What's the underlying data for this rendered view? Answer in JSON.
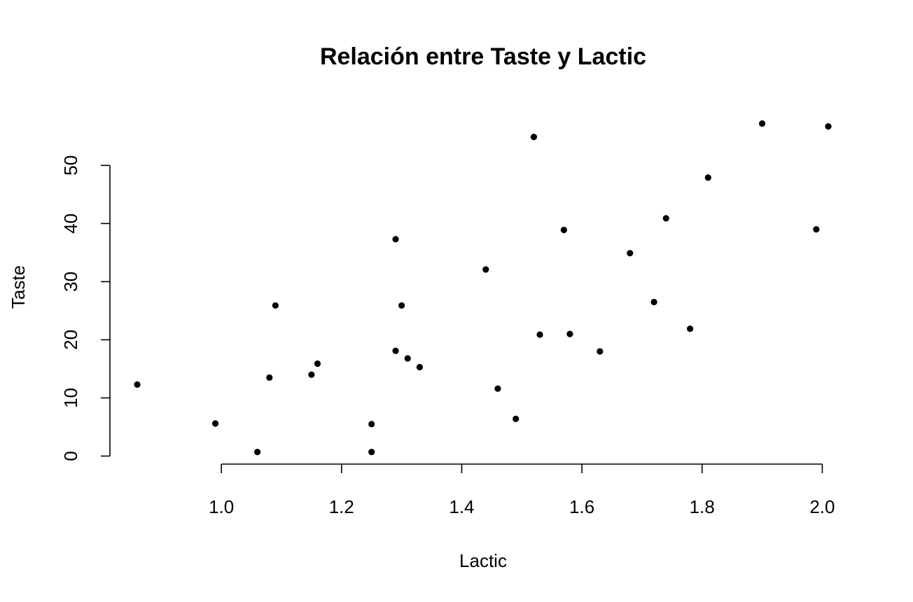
{
  "chart_data": {
    "type": "scatter",
    "title": "Relación entre Taste y Lactic",
    "xlabel": "Lactic",
    "ylabel": "Taste",
    "xlim": [
      0.86,
      2.01
    ],
    "ylim": [
      0,
      57.2
    ],
    "x_ticks": [
      1.0,
      1.2,
      1.4,
      1.6,
      1.8,
      2.0
    ],
    "x_tick_labels": [
      "1.0",
      "1.2",
      "1.4",
      "1.6",
      "1.8",
      "2.0"
    ],
    "y_ticks": [
      0,
      10,
      20,
      30,
      40,
      50
    ],
    "y_tick_labels": [
      "0",
      "10",
      "20",
      "30",
      "40",
      "50"
    ],
    "grid": false,
    "point_color": "#000000",
    "points": [
      {
        "x": 0.86,
        "y": 12.3
      },
      {
        "x": 0.99,
        "y": 5.6
      },
      {
        "x": 1.06,
        "y": 0.7
      },
      {
        "x": 1.08,
        "y": 13.5
      },
      {
        "x": 1.09,
        "y": 25.9
      },
      {
        "x": 1.15,
        "y": 14.0
      },
      {
        "x": 1.16,
        "y": 15.9
      },
      {
        "x": 1.25,
        "y": 5.5
      },
      {
        "x": 1.25,
        "y": 0.7
      },
      {
        "x": 1.29,
        "y": 37.3
      },
      {
        "x": 1.29,
        "y": 18.1
      },
      {
        "x": 1.3,
        "y": 25.9
      },
      {
        "x": 1.31,
        "y": 16.8
      },
      {
        "x": 1.33,
        "y": 15.3
      },
      {
        "x": 1.44,
        "y": 32.1
      },
      {
        "x": 1.46,
        "y": 11.6
      },
      {
        "x": 1.49,
        "y": 6.4
      },
      {
        "x": 1.52,
        "y": 54.9
      },
      {
        "x": 1.53,
        "y": 20.9
      },
      {
        "x": 1.57,
        "y": 38.9
      },
      {
        "x": 1.58,
        "y": 21.0
      },
      {
        "x": 1.63,
        "y": 18.0
      },
      {
        "x": 1.68,
        "y": 34.9
      },
      {
        "x": 1.72,
        "y": 26.5
      },
      {
        "x": 1.74,
        "y": 40.9
      },
      {
        "x": 1.78,
        "y": 21.9
      },
      {
        "x": 1.81,
        "y": 47.9
      },
      {
        "x": 1.9,
        "y": 57.2
      },
      {
        "x": 1.99,
        "y": 39.0
      },
      {
        "x": 2.01,
        "y": 56.7
      }
    ]
  }
}
